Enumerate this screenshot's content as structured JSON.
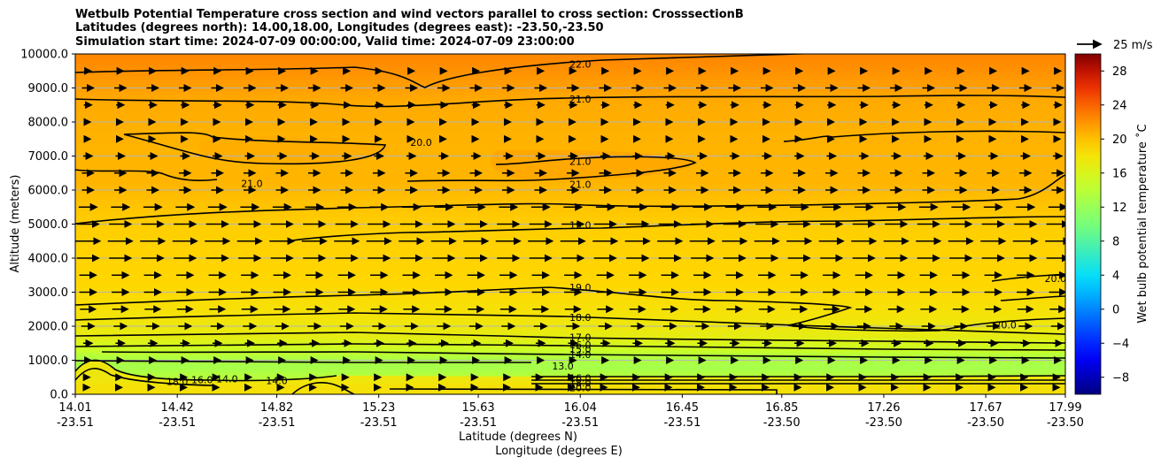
{
  "chart_data": {
    "type": "contour",
    "title_lines": [
      "Wetbulb Potential Temperature cross section and wind vectors parallel to cross section: CrosssectionB",
      "Latitudes (degrees north): 14.00,18.00, Longitudes (degrees east): -23.50,-23.50",
      "Simulation start time: 2024-07-09 00:00:00, Valid time: 2024-07-09 23:00:00"
    ],
    "xlabel_lat": "Latitude (degrees N)",
    "xlabel_lon": "Longitude (degrees E)",
    "ylabel": "Altitude (meters)",
    "x_ticks": [
      {
        "lat": "14.01",
        "lon": "-23.51",
        "lat_val": 14.01
      },
      {
        "lat": "14.42",
        "lon": "-23.51",
        "lat_val": 14.42
      },
      {
        "lat": "14.82",
        "lon": "-23.51",
        "lat_val": 14.82
      },
      {
        "lat": "15.23",
        "lon": "-23.51",
        "lat_val": 15.23
      },
      {
        "lat": "15.63",
        "lon": "-23.51",
        "lat_val": 15.63
      },
      {
        "lat": "16.04",
        "lon": "-23.51",
        "lat_val": 16.04
      },
      {
        "lat": "16.45",
        "lon": "-23.51",
        "lat_val": 16.45
      },
      {
        "lat": "16.85",
        "lon": "-23.50",
        "lat_val": 16.85
      },
      {
        "lat": "17.26",
        "lon": "-23.50",
        "lat_val": 17.26
      },
      {
        "lat": "17.67",
        "lon": "-23.50",
        "lat_val": 17.67
      },
      {
        "lat": "17.99",
        "lon": "-23.50",
        "lat_val": 17.99
      }
    ],
    "xlim": [
      14.01,
      17.99
    ],
    "y_ticks": [
      "0.0",
      "1000.0",
      "2000.0",
      "3000.0",
      "4000.0",
      "5000.0",
      "6000.0",
      "7000.0",
      "8000.0",
      "9000.0",
      "10000.0"
    ],
    "ylim": [
      0,
      10000
    ],
    "colorbar": {
      "label": "Wet bulb potential temperature $^\\circ$C",
      "label_display": "Wet bulb potential temperature ˚C",
      "ticks": [
        "−8",
        "−4",
        "0",
        "4",
        "8",
        "12",
        "16",
        "20",
        "24",
        "28"
      ],
      "range": [
        -10,
        30
      ]
    },
    "wind_key": {
      "label": "25 m/s",
      "speed": 25
    },
    "contour_labels": [
      {
        "text": "22.0",
        "x": 16.04,
        "y": 9700
      },
      {
        "text": "21.0",
        "x": 16.04,
        "y": 8680
      },
      {
        "text": "20.0",
        "x": 15.4,
        "y": 7400
      },
      {
        "text": "21.0",
        "x": 16.04,
        "y": 6850
      },
      {
        "text": "21.0",
        "x": 16.04,
        "y": 6170
      },
      {
        "text": "21.0",
        "x": 14.72,
        "y": 6200
      },
      {
        "text": "19.0",
        "x": 16.04,
        "y": 4980
      },
      {
        "text": "19.0",
        "x": 16.04,
        "y": 3140
      },
      {
        "text": "20.0",
        "x": 17.95,
        "y": 3400
      },
      {
        "text": "20.0",
        "x": 17.75,
        "y": 2040
      },
      {
        "text": "18.0",
        "x": 16.04,
        "y": 2260
      },
      {
        "text": "17.0",
        "x": 16.04,
        "y": 1670
      },
      {
        "text": "16.0",
        "x": 16.04,
        "y": 1450
      },
      {
        "text": "15.0",
        "x": 16.04,
        "y": 1330
      },
      {
        "text": "14.0",
        "x": 16.04,
        "y": 1170
      },
      {
        "text": "13.0",
        "x": 15.97,
        "y": 830
      },
      {
        "text": "14.0",
        "x": 14.62,
        "y": 460
      },
      {
        "text": "14.0",
        "x": 14.82,
        "y": 400
      },
      {
        "text": "16.0",
        "x": 14.52,
        "y": 430
      },
      {
        "text": "18.0",
        "x": 14.42,
        "y": 380
      },
      {
        "text": "16.0",
        "x": 16.04,
        "y": 480
      },
      {
        "text": "18.0",
        "x": 16.04,
        "y": 340
      },
      {
        "text": "20.0",
        "x": 16.04,
        "y": 200
      }
    ],
    "wind_profile": [
      {
        "alt": 9500,
        "u": 5
      },
      {
        "alt": 9000,
        "u": 9
      },
      {
        "alt": 8500,
        "u": 6
      },
      {
        "alt": 8000,
        "u": 4
      },
      {
        "alt": 7500,
        "u": 4
      },
      {
        "alt": 7000,
        "u": 7
      },
      {
        "alt": 6500,
        "u": 9
      },
      {
        "alt": 6000,
        "u": 9
      },
      {
        "alt": 5500,
        "u": 14
      },
      {
        "alt": 5000,
        "u": 17
      },
      {
        "alt": 4500,
        "u": 19
      },
      {
        "alt": 4000,
        "u": 17
      },
      {
        "alt": 3500,
        "u": 13
      },
      {
        "alt": 3000,
        "u": 13
      },
      {
        "alt": 2500,
        "u": 12
      },
      {
        "alt": 2000,
        "u": 10
      },
      {
        "alt": 1500,
        "u": 7
      },
      {
        "alt": 1000,
        "u": 5
      },
      {
        "alt": 500,
        "u": 3
      },
      {
        "alt": 200,
        "u": 1
      }
    ],
    "field_bands": [
      {
        "alt": 0,
        "t": 20
      },
      {
        "alt": 220,
        "t": 20
      },
      {
        "alt": 400,
        "t": 14
      },
      {
        "alt": 800,
        "t": 12.7
      },
      {
        "alt": 1100,
        "t": 13.5
      },
      {
        "alt": 1300,
        "t": 15
      },
      {
        "alt": 1700,
        "t": 17
      },
      {
        "alt": 2300,
        "t": 18
      },
      {
        "alt": 3200,
        "t": 19
      },
      {
        "alt": 5000,
        "t": 19.4
      },
      {
        "alt": 6200,
        "t": 20.5
      },
      {
        "alt": 7500,
        "t": 20.6
      },
      {
        "alt": 8600,
        "t": 21
      },
      {
        "alt": 9700,
        "t": 22.3
      },
      {
        "alt": 10000,
        "t": 22.6
      }
    ]
  }
}
